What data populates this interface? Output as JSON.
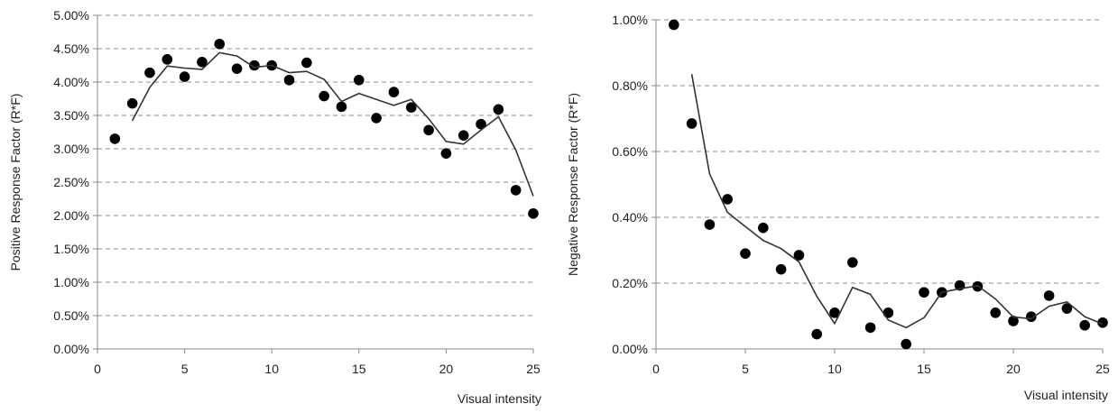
{
  "chart_data": [
    {
      "type": "scatter",
      "xlabel": "Visual intensity",
      "ylabel": "Positive Response Factor (R*F)",
      "xlim": [
        0,
        25
      ],
      "ylim": [
        0,
        5.0
      ],
      "y_unit": "%",
      "grid": "horizontal dashed",
      "legend": "none",
      "x_ticks": [
        "0",
        "5",
        "10",
        "15",
        "20",
        "25"
      ],
      "y_ticks": [
        "0.00%",
        "0.50%",
        "1.00%",
        "1.50%",
        "2.00%",
        "2.50%",
        "3.00%",
        "3.50%",
        "4.00%",
        "4.50%",
        "5.00%"
      ],
      "series": [
        {
          "kind": "points",
          "x": [
            1,
            2,
            3,
            4,
            5,
            6,
            7,
            8,
            9,
            10,
            11,
            12,
            13,
            14,
            15,
            16,
            17,
            18,
            19,
            20,
            21,
            22,
            23,
            24,
            25
          ],
          "y": [
            3.15,
            3.68,
            4.14,
            4.34,
            4.08,
            4.3,
            4.57,
            4.2,
            4.25,
            4.25,
            4.03,
            4.29,
            3.79,
            3.63,
            4.03,
            3.46,
            3.85,
            3.62,
            3.28,
            2.93,
            3.2,
            3.37,
            3.59,
            2.38,
            2.03
          ]
        },
        {
          "kind": "line",
          "x": [
            2,
            3,
            4,
            5,
            6,
            7,
            8,
            9,
            10,
            11,
            12,
            13,
            14,
            15,
            16,
            17,
            18,
            19,
            20,
            21,
            22,
            23,
            24,
            25
          ],
          "y": [
            3.42,
            3.92,
            4.24,
            4.21,
            4.19,
            4.44,
            4.39,
            4.22,
            4.25,
            4.14,
            4.16,
            4.04,
            3.71,
            3.83,
            3.74,
            3.65,
            3.74,
            3.45,
            3.11,
            3.07,
            3.28,
            3.48,
            2.98,
            2.29
          ]
        }
      ]
    },
    {
      "type": "scatter",
      "xlabel": "Visual intensity",
      "ylabel": "Negative Response Factor (R*F)",
      "xlim": [
        0,
        25
      ],
      "ylim": [
        0,
        1.0
      ],
      "y_unit": "%",
      "grid": "horizontal dashed",
      "legend": "none",
      "x_ticks": [
        "0",
        "5",
        "10",
        "15",
        "20",
        "25"
      ],
      "y_ticks": [
        "0.00%",
        "0.20%",
        "0.40%",
        "0.60%",
        "0.80%",
        "1.00%"
      ],
      "series": [
        {
          "kind": "points",
          "x": [
            1,
            2,
            3,
            4,
            5,
            6,
            7,
            8,
            9,
            10,
            11,
            12,
            13,
            14,
            15,
            16,
            17,
            18,
            19,
            20,
            21,
            22,
            23,
            24,
            25
          ],
          "y": [
            0.985,
            0.685,
            0.378,
            0.455,
            0.29,
            0.368,
            0.242,
            0.285,
            0.045,
            0.11,
            0.263,
            0.065,
            0.11,
            0.015,
            0.172,
            0.172,
            0.193,
            0.19,
            0.11,
            0.085,
            0.098,
            0.162,
            0.123,
            0.072,
            0.08
          ]
        },
        {
          "kind": "line",
          "x": [
            2,
            3,
            4,
            5,
            6,
            7,
            8,
            9,
            10,
            11,
            12,
            13,
            14,
            15,
            16,
            17,
            18,
            19,
            20,
            21,
            22,
            23,
            24,
            25
          ],
          "y": [
            0.835,
            0.532,
            0.415,
            0.372,
            0.33,
            0.305,
            0.265,
            0.16,
            0.077,
            0.187,
            0.166,
            0.088,
            0.065,
            0.095,
            0.172,
            0.183,
            0.192,
            0.152,
            0.097,
            0.092,
            0.13,
            0.143,
            0.098,
            0.076
          ]
        }
      ]
    }
  ]
}
